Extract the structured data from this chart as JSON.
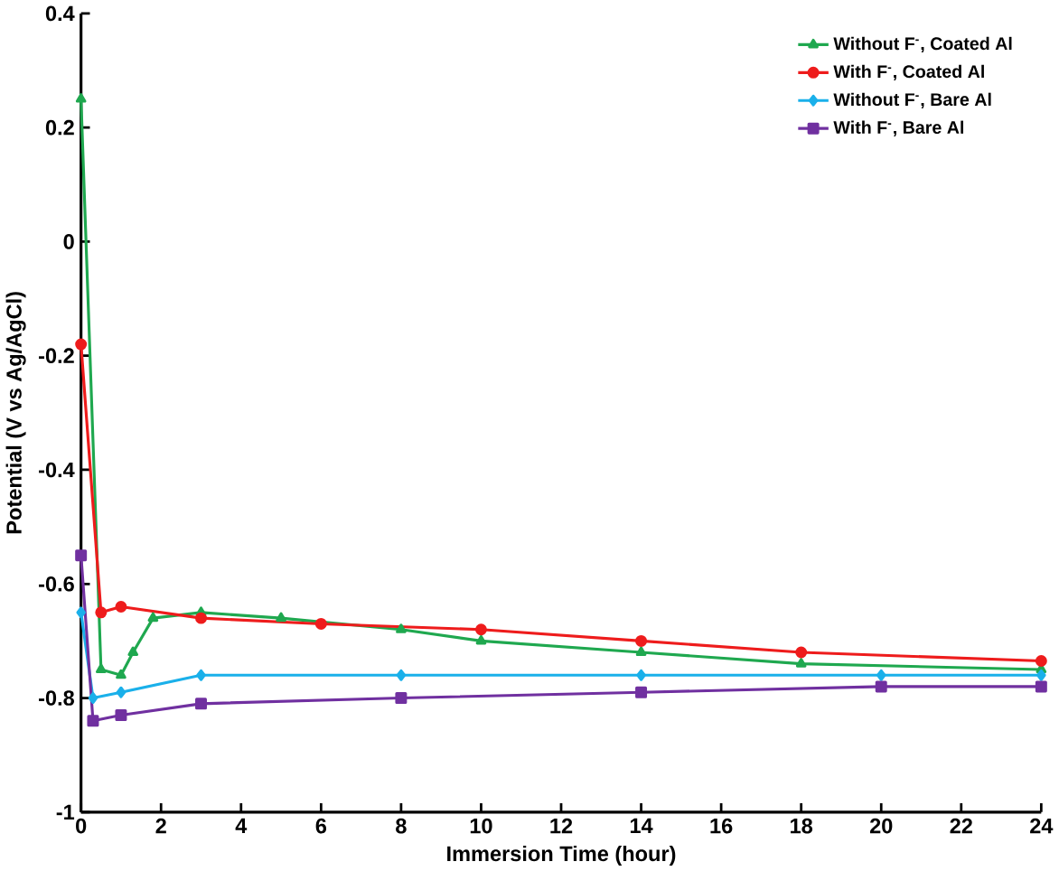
{
  "chart_data": {
    "type": "line",
    "xlabel": "Immersion Time (hour)",
    "ylabel": "Potential (V vs Ag/AgCl)",
    "xlim": [
      0,
      24
    ],
    "ylim": [
      -1,
      0.4
    ],
    "xticks": [
      0,
      2,
      4,
      6,
      8,
      10,
      12,
      14,
      16,
      18,
      20,
      22,
      24
    ],
    "yticks": [
      -1,
      -0.8,
      -0.6,
      -0.4,
      -0.2,
      0,
      0.2,
      0.4
    ],
    "legend": "top right",
    "grid": false,
    "series": [
      {
        "name": "Without F$^{-}$, Coated Al",
        "color": "#1fa84f",
        "marker": "triangle",
        "x": [
          0,
          0.5,
          1.0,
          1.3,
          1.8,
          3,
          5,
          8,
          10,
          14,
          18,
          24
        ],
        "values": [
          0.25,
          -0.75,
          -0.76,
          -0.72,
          -0.66,
          -0.65,
          -0.66,
          -0.68,
          -0.7,
          -0.72,
          -0.74,
          -0.75
        ]
      },
      {
        "name": "With F$^{-}$, Coated Al",
        "color": "#ee1c1c",
        "marker": "circle",
        "x": [
          0,
          0.5,
          1,
          3,
          6,
          10,
          14,
          18,
          24
        ],
        "values": [
          -0.18,
          -0.65,
          -0.64,
          -0.66,
          -0.67,
          -0.68,
          -0.7,
          -0.72,
          -0.735
        ]
      },
      {
        "name": "Without F$^{-}$, Bare Al",
        "color": "#1ab0ea",
        "marker": "diamond",
        "x": [
          0,
          0.3,
          1,
          3,
          8,
          14,
          20,
          24
        ],
        "values": [
          -0.65,
          -0.8,
          -0.79,
          -0.76,
          -0.76,
          -0.76,
          -0.76,
          -0.76
        ]
      },
      {
        "name": "With F$^{-}$, Bare Al",
        "color": "#7030a0",
        "marker": "square",
        "x": [
          0,
          0.3,
          1,
          3,
          8,
          14,
          20,
          24
        ],
        "values": [
          -0.55,
          -0.84,
          -0.83,
          -0.81,
          -0.8,
          -0.79,
          -0.78,
          -0.78
        ]
      }
    ]
  }
}
